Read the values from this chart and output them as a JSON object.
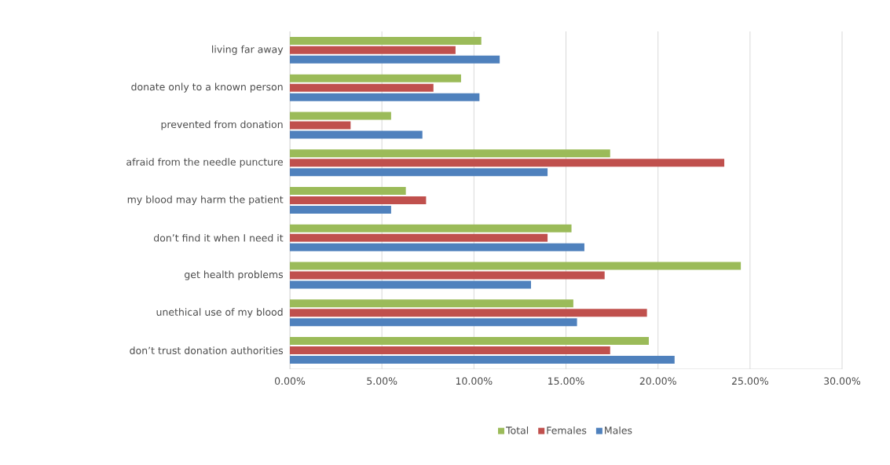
{
  "chart_data": {
    "type": "bar",
    "orientation": "horizontal",
    "categories": [
      "living far away",
      "donate only to a known person",
      "prevented from donation",
      "afraid from the needle puncture",
      "my blood may harm the patient",
      "don’t find it when I need it",
      "get health problems",
      "unethical use of my blood",
      "don’t trust donation authorities"
    ],
    "series": [
      {
        "name": "Total",
        "color": "#9bbb59",
        "values": [
          10.4,
          9.3,
          5.5,
          17.4,
          6.3,
          15.3,
          24.5,
          15.4,
          19.5
        ]
      },
      {
        "name": "Females",
        "color": "#c0504d",
        "values": [
          9.0,
          7.8,
          3.3,
          23.6,
          7.4,
          14.0,
          17.1,
          19.4,
          17.4
        ]
      },
      {
        "name": "Males",
        "color": "#4f81bd",
        "values": [
          11.4,
          10.3,
          7.2,
          14.0,
          5.5,
          16.0,
          13.1,
          15.6,
          20.9
        ]
      }
    ],
    "xlim": [
      0,
      30
    ],
    "xticks": [
      {
        "value": 0,
        "label": "0.00%"
      },
      {
        "value": 5,
        "label": "5.00%"
      },
      {
        "value": 10,
        "label": "10.00%"
      },
      {
        "value": 15,
        "label": "15.00%"
      },
      {
        "value": 20,
        "label": "20.00%"
      },
      {
        "value": 25,
        "label": "25.00%"
      },
      {
        "value": 30,
        "label": "30.00%"
      }
    ],
    "grid": "x",
    "legend": "bottom"
  }
}
